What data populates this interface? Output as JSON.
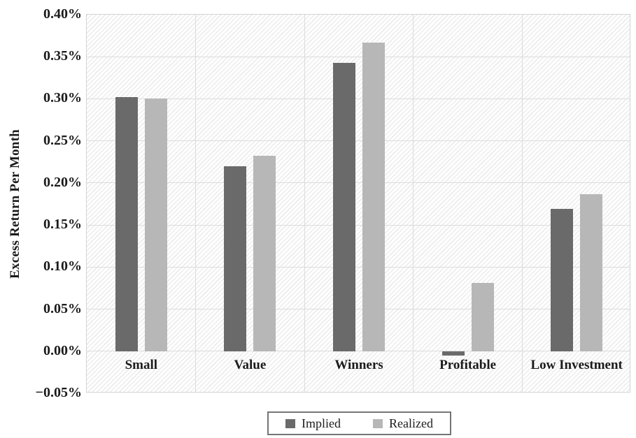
{
  "chart_data": {
    "type": "bar",
    "title": "",
    "xlabel": "",
    "ylabel": "Excess Return Per Month",
    "categories": [
      "Small",
      "Value",
      "Winners",
      "Profitable",
      "Low Investment"
    ],
    "series": [
      {
        "name": "Implied",
        "color": "#6a6a6a",
        "values": [
          0.302,
          0.22,
          0.343,
          -0.005,
          0.169
        ]
      },
      {
        "name": "Realized",
        "color": "#b7b7b7",
        "values": [
          0.3,
          0.232,
          0.367,
          0.081,
          0.187
        ]
      }
    ],
    "ylim": [
      -0.05,
      0.4
    ],
    "y_tick_values": [
      0.4,
      0.35,
      0.3,
      0.25,
      0.2,
      0.15,
      0.1,
      0.05,
      0.0,
      -0.05
    ],
    "y_tick_labels": [
      "0.40%",
      "0.35%",
      "0.30%",
      "0.25%",
      "0.20%",
      "0.15%",
      "0.10%",
      "0.05%",
      "0.00%",
      "−0.05%"
    ],
    "grid": true,
    "plot_background": "diagonal-hatch",
    "legend_position": "bottom"
  },
  "colors": {
    "implied_bar": "#6a6a6a",
    "realized_bar": "#b7b7b7",
    "gridline": "#dcdcdc",
    "hatch_stripe": "#ececec",
    "text": "#1b1b1b",
    "legend_border": "#757575"
  }
}
